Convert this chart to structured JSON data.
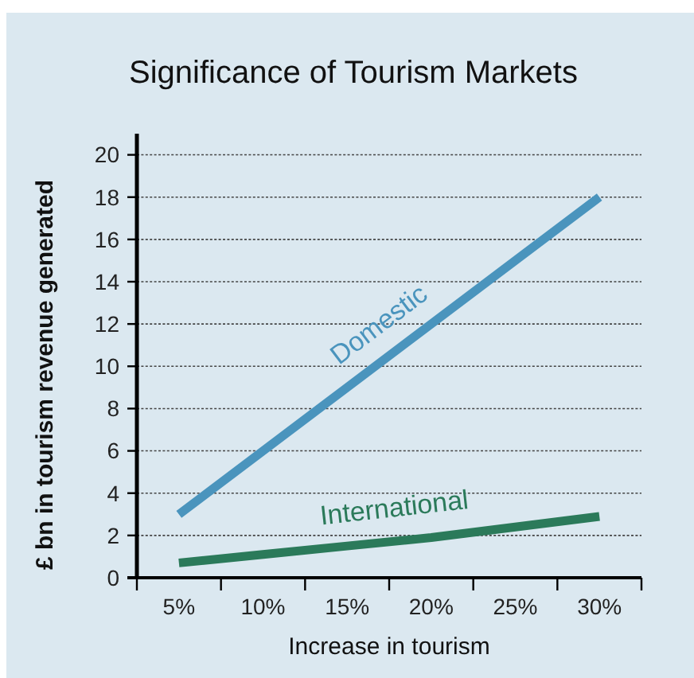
{
  "chart_data": {
    "type": "line",
    "title": "Significance of Tourism Markets",
    "xlabel": "Increase in tourism",
    "ylabel": "£ bn in tourism revenue generated",
    "categories": [
      "5%",
      "10%",
      "15%",
      "20%",
      "25%",
      "30%"
    ],
    "series": [
      {
        "name": "Domestic",
        "color": "#4a94bd",
        "values": [
          3,
          6,
          9,
          12,
          15,
          18
        ]
      },
      {
        "name": "International",
        "color": "#2b7a5a",
        "values": [
          0.7,
          1.1,
          1.5,
          1.9,
          2.4,
          2.9
        ]
      }
    ],
    "ylim": [
      0,
      21
    ],
    "yticks": [
      0,
      2,
      4,
      6,
      8,
      10,
      12,
      14,
      16,
      18,
      20
    ],
    "grid": "y",
    "line_style": "solid",
    "marker": "none"
  }
}
